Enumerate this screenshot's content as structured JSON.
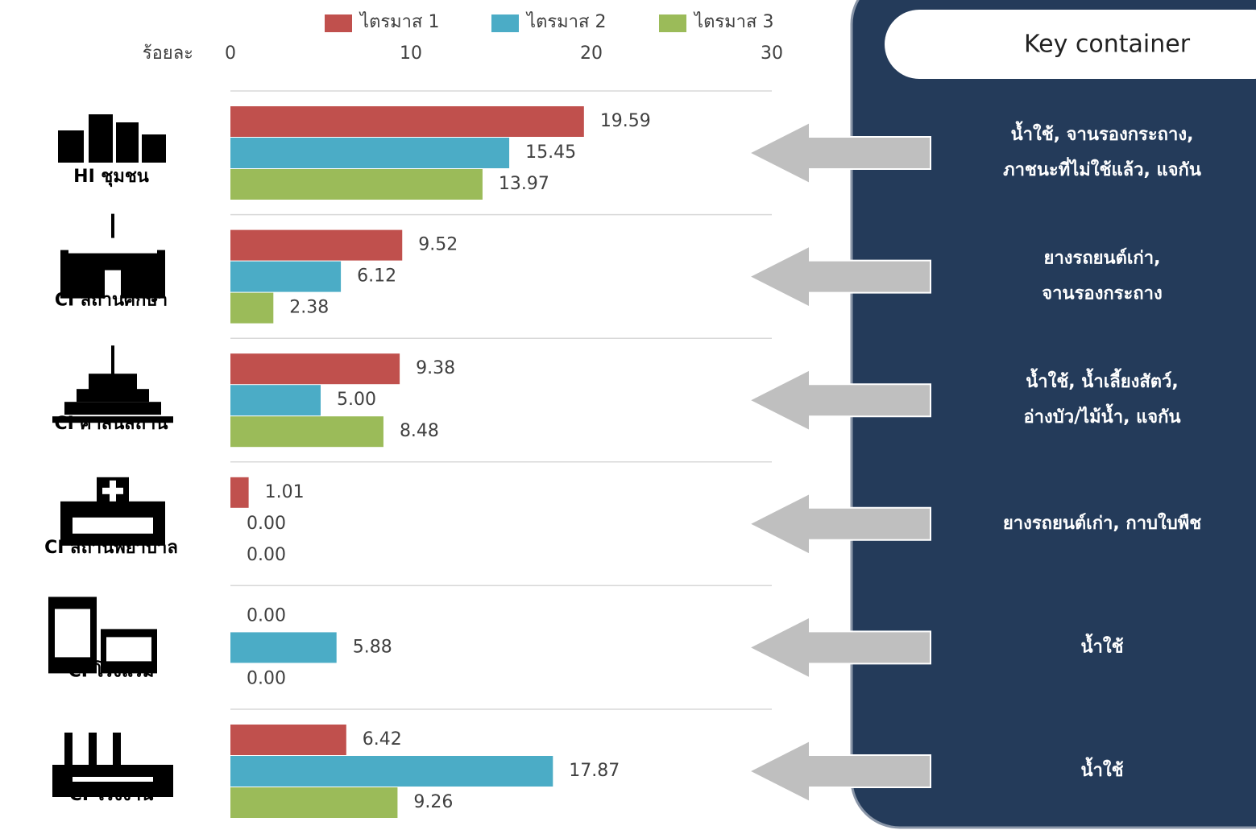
{
  "chart_data": {
    "type": "bar",
    "orientation": "horizontal",
    "x_label": "ร้อยละ",
    "categories": [
      "HI ชุมชน",
      "CI สถานศึกษา",
      "CI ศาสนสถาน",
      "CI สถานพยาบาล",
      "CI โรงแรม",
      "CI โรงงาน"
    ],
    "series": [
      {
        "name": "ไตรมาส 1",
        "color": "#c0504d",
        "values": [
          19.59,
          9.52,
          9.38,
          1.01,
          0,
          6.42
        ],
        "value_labels": [
          "19.59",
          "9.52",
          "9.38",
          "1.01",
          "0.00",
          "6.42"
        ]
      },
      {
        "name": "ไตรมาส 2",
        "color": "#4bacc6",
        "values": [
          15.45,
          6.12,
          5,
          0,
          5.88,
          17.87
        ],
        "value_labels": [
          "15.45",
          "6.12",
          "5.00",
          "0.00",
          "5.88",
          "17.87"
        ]
      },
      {
        "name": "ไตรมาส 3",
        "color": "#9bbb59",
        "values": [
          13.97,
          2.38,
          8.48,
          0,
          0,
          9.26
        ],
        "value_labels": [
          "13.97",
          "2.38",
          "8.48",
          "0.00",
          "0.00",
          "9.26"
        ]
      }
    ],
    "xlim": [
      0,
      30
    ],
    "xticks": [
      0,
      10,
      20,
      30
    ],
    "legend": "top"
  },
  "key_container": {
    "title": "Key container",
    "items": [
      [
        "น้ำใช้, จานรองกระถาง,",
        "ภาชนะที่ไม่ใช้แล้ว, แจกัน"
      ],
      [
        "ยางรถยนต์เก่า,",
        "จานรองกระถาง"
      ],
      [
        "น้ำใช้, น้ำเลี้ยงสัตว์,",
        "อ่างบัว/ไม้น้ำ, แจกัน"
      ],
      [
        "ยางรถยนต์เก่า, กาบใบพืช"
      ],
      [
        "น้ำใช้"
      ],
      [
        "น้ำใช้"
      ]
    ]
  }
}
